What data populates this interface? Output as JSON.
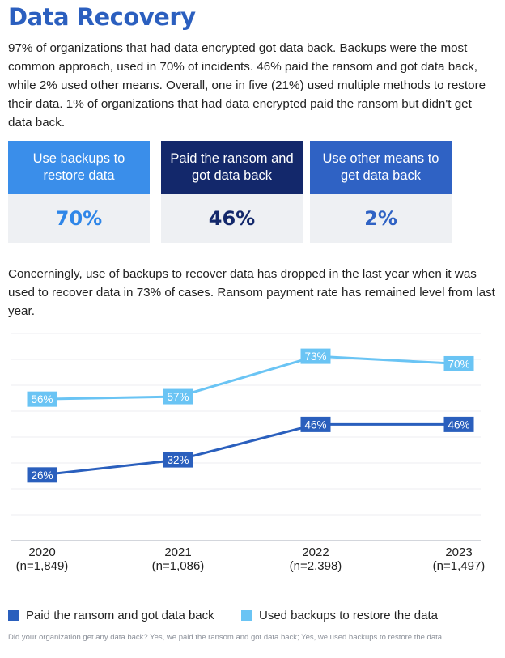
{
  "title": "Data Recovery",
  "intro": "97% of organizations that had data encrypted got data back. Backups were the most common approach, used in 70% of incidents. 46% paid the ransom and got data back, while 2% used other means. Overall, one in five (21%) used multiple methods to restore their data. 1% of organizations that had data encrypted paid the ransom but didn't get data back.",
  "cards": [
    {
      "label": "Use backups to restore data",
      "value": "70%",
      "bg": "#3a8eea",
      "fg": "#2f86e8"
    },
    {
      "label": "Paid the ransom and got data back",
      "value": "46%",
      "bg": "#13286b",
      "fg": "#13286b"
    },
    {
      "label": "Use other means to get data back",
      "value": "2%",
      "bg": "#2f62c4",
      "fg": "#2f62c4"
    }
  ],
  "subtext": "Concerningly, use of backups to recover data has dropped in the last year when it was used to recover data in 73% of cases. Ransom payment rate has remained level from last year.",
  "chart_data": {
    "type": "line",
    "x": [
      "2020",
      "2021",
      "2022",
      "2023"
    ],
    "x_sublabels": [
      "(n=1,849)",
      "(n=1,086)",
      "(n=2,398)",
      "(n=1,497)"
    ],
    "ylim": [
      0,
      82
    ],
    "grid": true,
    "series": [
      {
        "name": "Used backups to restore the data",
        "values": [
          56,
          57,
          73,
          70
        ],
        "labels": [
          "56%",
          "57%",
          "73%",
          "70%"
        ],
        "color": "#6ac4f4"
      },
      {
        "name": "Paid the ransom and got data back",
        "values": [
          26,
          32,
          46,
          46
        ],
        "labels": [
          "26%",
          "32%",
          "46%",
          "46%"
        ],
        "color": "#2a5fbd"
      }
    ]
  },
  "legend": [
    {
      "label": "Paid the ransom and got data back",
      "color": "#2a5fbd"
    },
    {
      "label": "Used backups to restore the data",
      "color": "#6ac4f4"
    }
  ],
  "footnote": "Did your organization get any data back? Yes, we paid the ransom and got data back; Yes, we used backups to restore the data."
}
